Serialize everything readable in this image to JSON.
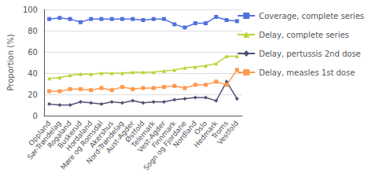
{
  "chart_data": {
    "type": "line",
    "categories": [
      "Oppland",
      "Sør-Trøndelag",
      "Rogaland",
      "Buskerud",
      "Hordaland",
      "Møre og Romsdal",
      "Akershus",
      "Nord-Trøndelag",
      "Aust-Agder",
      "Østfold",
      "Telemark",
      "Vest-Agder",
      "Finnmark",
      "Sogn og Fjordane",
      "Nordland",
      "Oslo",
      "Hedmark",
      "Troms",
      "Vestfold"
    ],
    "series": [
      {
        "name": "Coverage, complete series",
        "marker": "square",
        "values": [
          91,
          92,
          91,
          88,
          91,
          91,
          91,
          91,
          91,
          90,
          91,
          91,
          86,
          83,
          87,
          87,
          93,
          90,
          89
        ]
      },
      {
        "name": "Delay, complete series",
        "marker": "triangle",
        "values": [
          35,
          36,
          38,
          39,
          39,
          40,
          40,
          40,
          41,
          41,
          41,
          42,
          43,
          45,
          46,
          47,
          49,
          56,
          56
        ]
      },
      {
        "name": "Delay, pertussis 2nd dose",
        "marker": "diamond",
        "values": [
          11,
          10,
          10,
          13,
          12,
          11,
          13,
          12,
          14,
          12,
          13,
          13,
          15,
          16,
          17,
          17,
          14,
          32,
          16
        ]
      },
      {
        "name": "Delay, measles 1st dose",
        "marker": "square",
        "values": [
          23,
          23,
          25,
          25,
          24,
          26,
          24,
          27,
          25,
          26,
          26,
          27,
          28,
          26,
          29,
          29,
          32,
          29,
          43
        ]
      }
    ],
    "ylabel": "Proportion (%)",
    "ylim": [
      0,
      100
    ],
    "yticks": [
      0,
      20,
      40,
      60,
      80,
      100
    ],
    "grid": true,
    "legend": "right"
  }
}
